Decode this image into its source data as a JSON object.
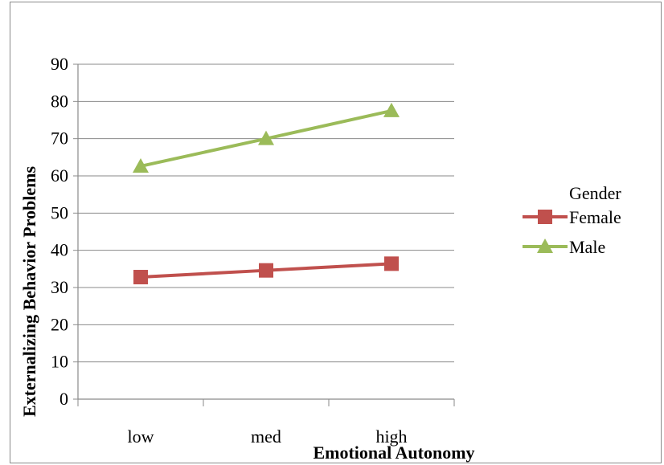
{
  "chart_data": {
    "type": "line",
    "categories": [
      "low",
      "med",
      "high"
    ],
    "series": [
      {
        "name": "Female",
        "values": [
          32.8,
          34.6,
          36.4
        ],
        "color": "#c0504d",
        "marker": "square"
      },
      {
        "name": "Male",
        "values": [
          62.6,
          70.0,
          77.5
        ],
        "color": "#9bbb59",
        "marker": "triangle"
      }
    ],
    "xlabel": "Emotional Autonomy",
    "ylabel": "Externalizing Behavior Problems",
    "ylim": [
      0,
      90
    ],
    "yticks": [
      0,
      10,
      20,
      30,
      40,
      50,
      60,
      70,
      80,
      90
    ],
    "grid": true,
    "legend": {
      "title": "Gender",
      "placement": "right"
    }
  }
}
